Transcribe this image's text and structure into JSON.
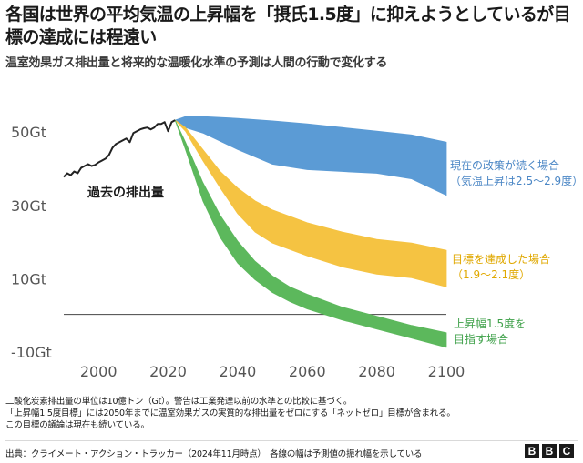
{
  "title": "各国は世界の平均気温の上昇幅を「摂氏1.5度」に抑えようとしているが目標の達成には程遠い",
  "subtitle": "温室効果ガス排出量と将来的な温暖化水準の予測は人間の行動で変化する",
  "notes": [
    "二酸化炭素排出量の単位は10億トン（Gt）。警告は工業発達以前の水準との比較に基づく。",
    "「上昇幅1.5度目標」には2050年までに温室効果ガスの実質的な排出量をゼロにする「ネットゼロ」目標が含まれる。",
    "この目標の議論は現在も続いている。"
  ],
  "source": "出典：クライメート・アクション・トラッカー（2024年11月時点）　各線の幅は予測値の振れ幅を示している",
  "logo": [
    "B",
    "B",
    "C"
  ],
  "chart_data": {
    "type": "area",
    "xlim": [
      1990,
      2100
    ],
    "ylim": [
      -13,
      58
    ],
    "x_ticks": [
      "2000",
      "2020",
      "2040",
      "2060",
      "2080",
      "2100"
    ],
    "y_ticks": [
      "50Gt",
      "30Gt",
      "10Gt",
      "-10Gt"
    ],
    "y_tick_values": [
      50,
      30,
      10,
      -10
    ],
    "zero_line": 0,
    "colors": {
      "history": "#222222",
      "current": "#5b9bd5",
      "target": "#f5c342",
      "one_five": "#5cb85c",
      "current_label": "#4a86c5",
      "target_label": "#e0a800",
      "one_five_label": "#3fa14a"
    },
    "history": {
      "label": "過去の排出量",
      "x": [
        1990,
        1991,
        1992,
        1993,
        1994,
        1995,
        1996,
        1997,
        1998,
        1999,
        2000,
        2001,
        2002,
        2003,
        2004,
        2005,
        2006,
        2007,
        2008,
        2009,
        2010,
        2011,
        2012,
        2013,
        2014,
        2015,
        2016,
        2017,
        2018,
        2019,
        2020,
        2021,
        2022
      ],
      "y": [
        37.5,
        38.5,
        38,
        39,
        38.5,
        40,
        40.5,
        41,
        40.5,
        40.8,
        41.5,
        42,
        42.5,
        43.5,
        45.5,
        46.5,
        47,
        47.5,
        48,
        47,
        49.5,
        50,
        50.5,
        50.8,
        51,
        50.5,
        51,
        52,
        52,
        52.5,
        50,
        52.5,
        53
      ]
    },
    "bands": [
      {
        "key": "current",
        "label_lines": [
          "現在の政策が続く場合",
          "（気温上昇は2.5～2.9度）"
        ],
        "x": [
          2022,
          2025,
          2030,
          2040,
          2050,
          2060,
          2070,
          2080,
          2090,
          2100
        ],
        "upper": [
          53,
          54,
          54,
          53.5,
          52.8,
          52,
          51,
          50,
          49,
          47
        ],
        "lower": [
          53,
          51,
          49.5,
          45,
          41,
          39.5,
          39,
          38.5,
          37,
          32.5
        ]
      },
      {
        "key": "target",
        "label_lines": [
          "目標を達成した場合",
          "（1.9～2.1度）"
        ],
        "x": [
          2022,
          2025,
          2030,
          2035,
          2040,
          2045,
          2050,
          2060,
          2070,
          2080,
          2090,
          2100
        ],
        "upper": [
          53,
          51,
          45,
          39,
          34.5,
          31,
          28.5,
          25,
          22.5,
          20.5,
          19.5,
          17.5
        ],
        "lower": [
          53,
          50,
          42,
          34.5,
          27.5,
          22.5,
          19.5,
          16,
          13,
          11,
          10,
          7.5
        ]
      },
      {
        "key": "one_five",
        "label_lines": [
          "上昇幅1.5度を",
          "目指す場合"
        ],
        "x": [
          2022,
          2025,
          2030,
          2035,
          2040,
          2045,
          2050,
          2055,
          2060,
          2070,
          2080,
          2090,
          2100
        ],
        "upper": [
          53,
          47,
          36,
          27,
          20,
          14.5,
          10.5,
          7.5,
          5.5,
          2,
          -0.5,
          -3,
          -5
        ],
        "lower": [
          53,
          45,
          31,
          21,
          14,
          9.5,
          6,
          3.5,
          1.5,
          -1.5,
          -4,
          -6.5,
          -9
        ]
      }
    ]
  }
}
